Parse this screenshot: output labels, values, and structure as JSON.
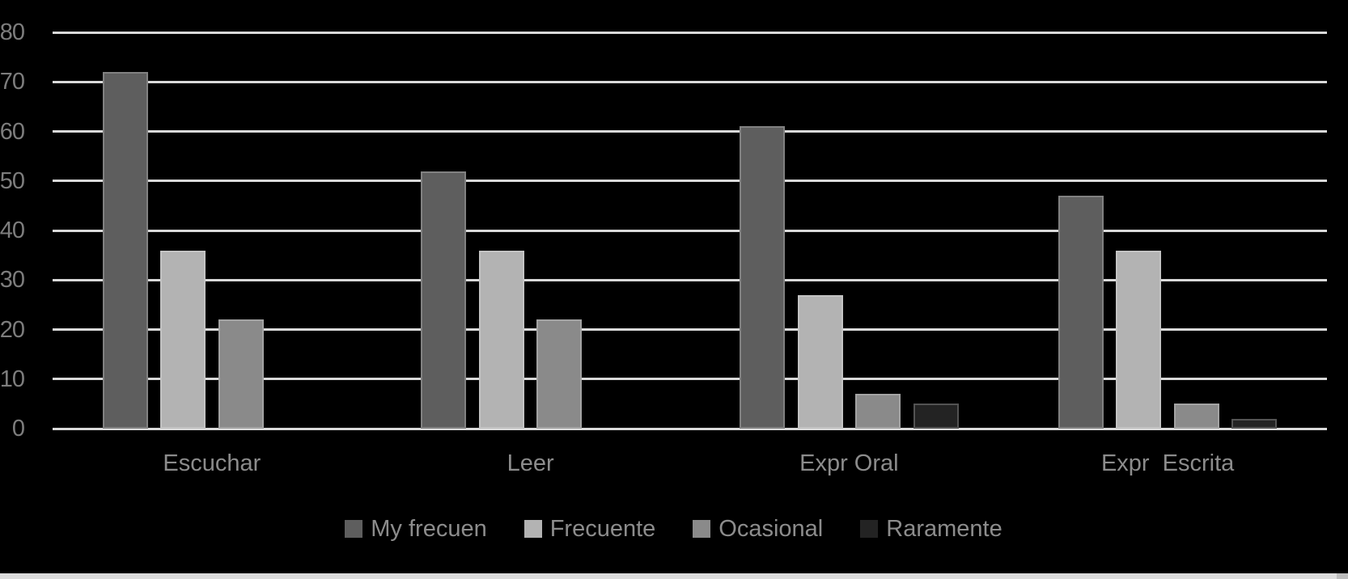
{
  "chart_data": {
    "type": "bar",
    "title": "",
    "categories": [
      "Escuchar",
      "Leer",
      "Expr Oral",
      "Expr  Escrita"
    ],
    "series": [
      {
        "name": "My frecuen",
        "color": "#5E5E5E",
        "values": [
          72,
          52,
          61,
          47
        ]
      },
      {
        "name": "Frecuente",
        "color": "#B3B3B3",
        "values": [
          36,
          36,
          27,
          36
        ]
      },
      {
        "name": "Ocasional",
        "color": "#8A8A8A",
        "values": [
          22,
          22,
          7,
          5
        ]
      },
      {
        "name": "Raramente",
        "color": "#232323",
        "values": [
          0,
          0,
          5,
          2
        ]
      }
    ],
    "ylim": [
      0,
      80
    ],
    "yticks": [
      0,
      10,
      20,
      30,
      40,
      50,
      60,
      70,
      80
    ],
    "grid": "horizontal-major",
    "legend_position": "bottom",
    "xlabel": "",
    "ylabel": "",
    "colors": {
      "background": "#000000",
      "gridline": "#D9D9D9",
      "tick_label": "#7D7D7D",
      "category_label": "#8C8C8C",
      "legend_label": "#8C8C8C",
      "bottom_strip": "#DCDCDC",
      "bottom_strip_end": "#BDBDBD"
    }
  }
}
